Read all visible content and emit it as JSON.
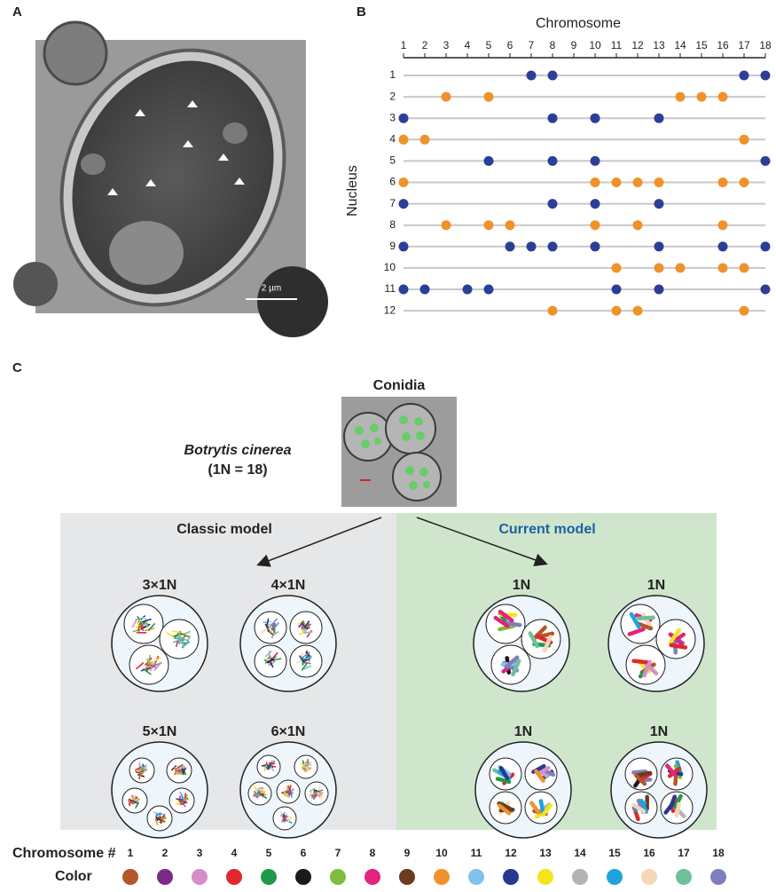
{
  "panel_a": {
    "label": "A",
    "scale_bar": "2 µm"
  },
  "panel_b": {
    "label": "B",
    "x_label": "Chromosome",
    "y_label": "Nucleus",
    "xticks": [
      1,
      2,
      3,
      4,
      5,
      6,
      7,
      8,
      9,
      10,
      11,
      12,
      13,
      14,
      15,
      16,
      17,
      18
    ],
    "rows": [
      {
        "nucleus": 1,
        "color": "#2b3f97",
        "chromosomes": [
          7,
          8,
          17,
          18
        ]
      },
      {
        "nucleus": 2,
        "color": "#f0922b",
        "chromosomes": [
          3,
          5,
          14,
          15,
          16
        ]
      },
      {
        "nucleus": 3,
        "color": "#2b3f97",
        "chromosomes": [
          1,
          8,
          10,
          13
        ]
      },
      {
        "nucleus": 4,
        "color": "#f0922b",
        "chromosomes": [
          1,
          2,
          17
        ]
      },
      {
        "nucleus": 5,
        "color": "#2b3f97",
        "chromosomes": [
          5,
          8,
          10,
          18
        ]
      },
      {
        "nucleus": 6,
        "color": "#f0922b",
        "chromosomes": [
          1,
          10,
          11,
          12,
          13,
          16,
          17
        ]
      },
      {
        "nucleus": 7,
        "color": "#2b3f97",
        "chromosomes": [
          1,
          8,
          10,
          13
        ]
      },
      {
        "nucleus": 8,
        "color": "#f0922b",
        "chromosomes": [
          3,
          5,
          6,
          10,
          12,
          16
        ]
      },
      {
        "nucleus": 9,
        "color": "#2b3f97",
        "chromosomes": [
          1,
          6,
          7,
          8,
          10,
          13,
          16,
          18
        ]
      },
      {
        "nucleus": 10,
        "color": "#f0922b",
        "chromosomes": [
          11,
          13,
          14,
          16,
          17
        ]
      },
      {
        "nucleus": 11,
        "color": "#2b3f97",
        "chromosomes": [
          1,
          2,
          4,
          5,
          11,
          13,
          18
        ]
      },
      {
        "nucleus": 12,
        "color": "#f0922b",
        "chromosomes": [
          8,
          11,
          12,
          17
        ]
      }
    ]
  },
  "panel_c": {
    "label": "C",
    "conidia": "Conidia",
    "species": "Botrytis cinerea",
    "ploidy": "(1N = 18)",
    "classic": {
      "title": "Classic model",
      "cells": [
        "3×1N",
        "4×1N",
        "5×1N",
        "6×1N"
      ]
    },
    "current": {
      "title": "Current model",
      "cells": [
        "1N",
        "1N",
        "1N",
        "1N"
      ]
    }
  },
  "legend": {
    "number_label": "Chromosome #",
    "color_label": "Color",
    "chromosomes": [
      {
        "number": 1,
        "color": "#b5552a"
      },
      {
        "number": 2,
        "color": "#7b2a8a"
      },
      {
        "number": 3,
        "color": "#d68fc6"
      },
      {
        "number": 4,
        "color": "#e0282e"
      },
      {
        "number": 5,
        "color": "#1f9a4a"
      },
      {
        "number": 6,
        "color": "#1a1a1a"
      },
      {
        "number": 7,
        "color": "#7dbd3f"
      },
      {
        "number": 8,
        "color": "#e0247f"
      },
      {
        "number": 9,
        "color": "#6b3b1f"
      },
      {
        "number": 10,
        "color": "#f0922b"
      },
      {
        "number": 11,
        "color": "#7fc3ec"
      },
      {
        "number": 12,
        "color": "#26398e"
      },
      {
        "number": 13,
        "color": "#f2e51b"
      },
      {
        "number": 14,
        "color": "#b3b3b3"
      },
      {
        "number": 15,
        "color": "#1ea3dd"
      },
      {
        "number": 16,
        "color": "#f7d6b3"
      },
      {
        "number": 17,
        "color": "#6fbf9b"
      },
      {
        "number": 18,
        "color": "#7f7fc0"
      }
    ]
  }
}
